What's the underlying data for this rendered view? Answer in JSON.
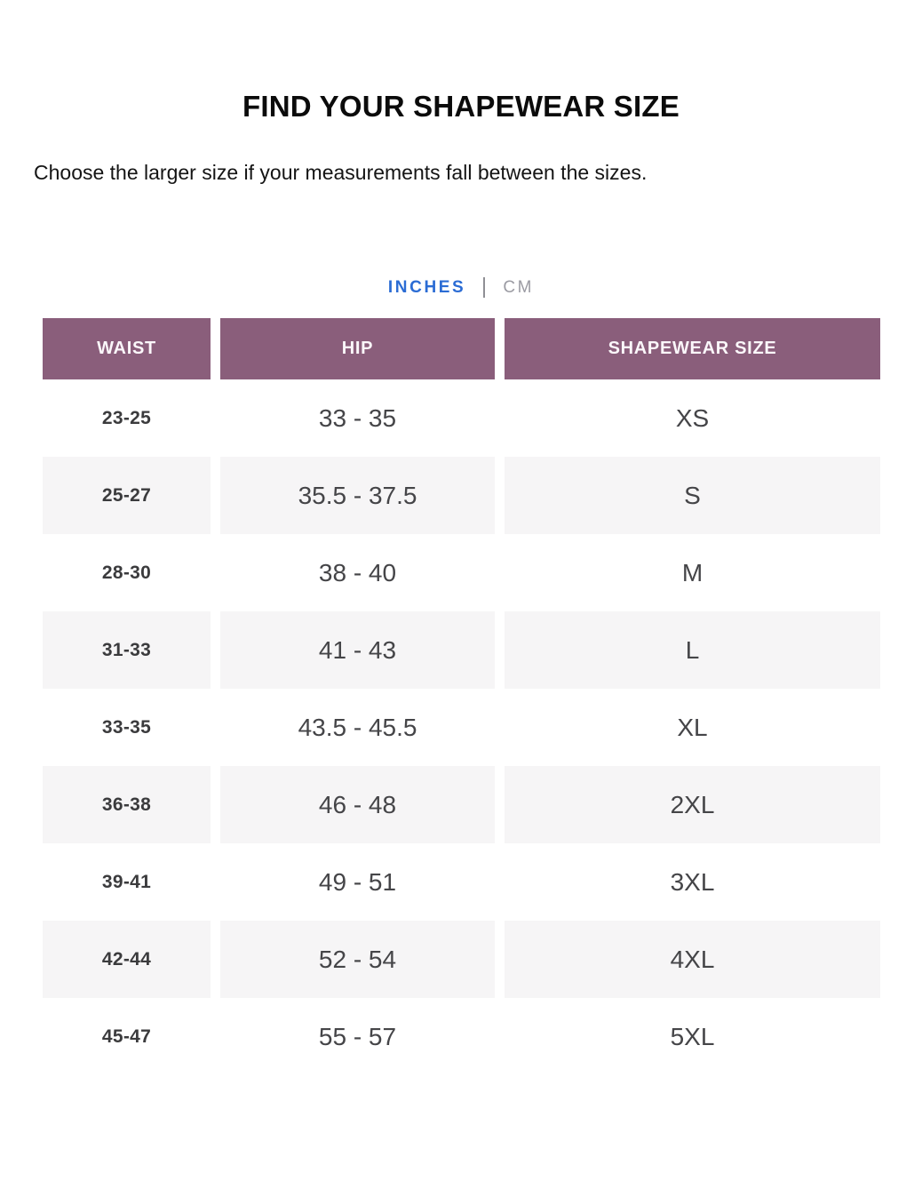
{
  "theme": {
    "header_bg": "#8a5e7b",
    "alt_row_bg": "#f6f5f6",
    "accent_blue": "#2b6cd4",
    "inactive_gray": "#9b9ba3",
    "text_dark": "#3b3b3d",
    "text_medium": "#454548"
  },
  "header": {
    "title": "FIND YOUR SHAPEWEAR SIZE",
    "subtitle": "Choose the larger size if your measurements fall between the sizes."
  },
  "units_toggle": {
    "options": [
      {
        "label": "INCHES",
        "selected": true
      },
      {
        "label": "CM",
        "selected": false
      }
    ]
  },
  "size_table": {
    "columns": [
      "WAIST",
      "HIP",
      "SHAPEWEAR SIZE"
    ],
    "rows": [
      {
        "waist": "23-25",
        "hip": "33 - 35",
        "size": "XS"
      },
      {
        "waist": "25-27",
        "hip": "35.5 - 37.5",
        "size": "S"
      },
      {
        "waist": "28-30",
        "hip": "38 - 40",
        "size": "M"
      },
      {
        "waist": "31-33",
        "hip": "41 - 43",
        "size": "L"
      },
      {
        "waist": "33-35",
        "hip": "43.5 - 45.5",
        "size": "XL"
      },
      {
        "waist": "36-38",
        "hip": "46 - 48",
        "size": "2XL"
      },
      {
        "waist": "39-41",
        "hip": "49 - 51",
        "size": "3XL"
      },
      {
        "waist": "42-44",
        "hip": "52 - 54",
        "size": "4XL"
      },
      {
        "waist": "45-47",
        "hip": "55 - 57",
        "size": "5XL"
      }
    ]
  }
}
